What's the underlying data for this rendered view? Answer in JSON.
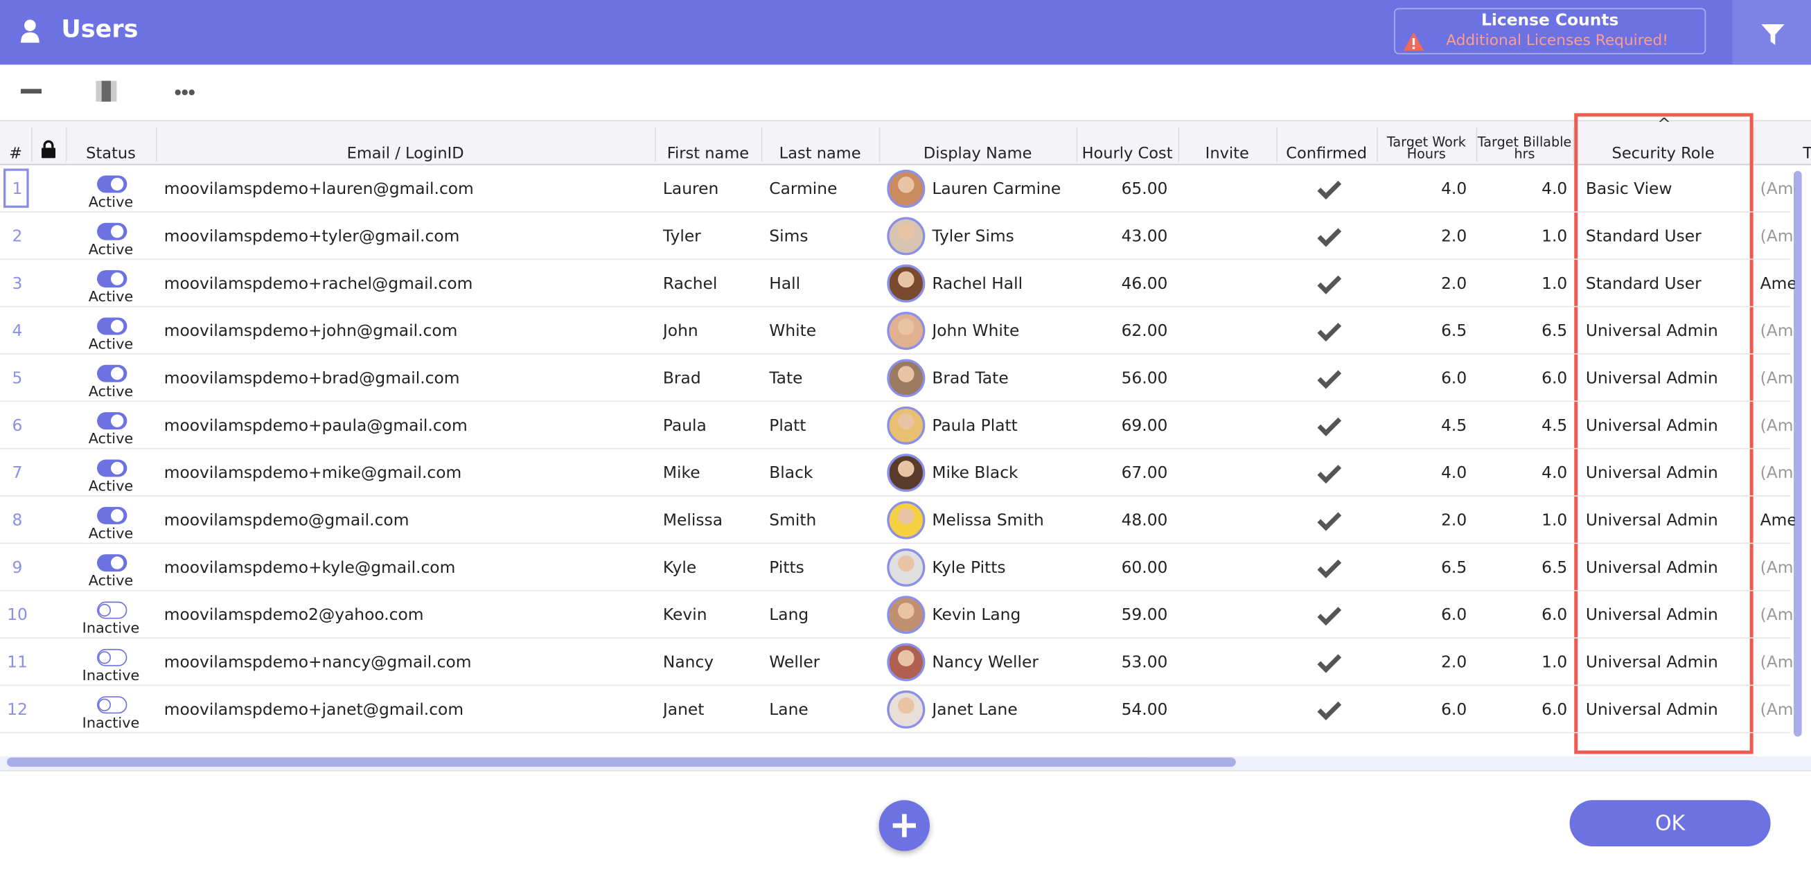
{
  "header": {
    "title": "Users",
    "license_title": "License Counts",
    "license_warning": "Additional Licenses Required!"
  },
  "table": {
    "columns": [
      "#",
      "Status",
      "Email / LoginID",
      "First name",
      "Last name",
      "Display Name",
      "Hourly Cost",
      "Invite",
      "Confirmed",
      "Target Work Hours",
      "Target Billable hrs",
      "Security Role",
      "T"
    ],
    "rows": [
      {
        "num": "1",
        "status": "Active",
        "email": "moovilamspdemo+lauren@gmail.com",
        "first": "Lauren",
        "last": "Carmine",
        "display": "Lauren Carmine",
        "cost": "65.00",
        "work": "4.0",
        "billable": "4.0",
        "role": "Basic View",
        "tz": "(Ame"
      },
      {
        "num": "2",
        "status": "Active",
        "email": "moovilamspdemo+tyler@gmail.com",
        "first": "Tyler",
        "last": "Sims",
        "display": "Tyler Sims",
        "cost": "43.00",
        "work": "2.0",
        "billable": "1.0",
        "role": "Standard User",
        "tz": "(Am"
      },
      {
        "num": "3",
        "status": "Active",
        "email": "moovilamspdemo+rachel@gmail.com",
        "first": "Rachel",
        "last": "Hall",
        "display": "Rachel Hall",
        "cost": "46.00",
        "work": "2.0",
        "billable": "1.0",
        "role": "Standard User",
        "tz": "Ame"
      },
      {
        "num": "4",
        "status": "Active",
        "email": "moovilamspdemo+john@gmail.com",
        "first": "John",
        "last": "White",
        "display": "John White",
        "cost": "62.00",
        "work": "6.5",
        "billable": "6.5",
        "role": "Universal Admin",
        "tz": "(Am"
      },
      {
        "num": "5",
        "status": "Active",
        "email": "moovilamspdemo+brad@gmail.com",
        "first": "Brad",
        "last": "Tate",
        "display": "Brad Tate",
        "cost": "56.00",
        "work": "6.0",
        "billable": "6.0",
        "role": "Universal Admin",
        "tz": "(Am"
      },
      {
        "num": "6",
        "status": "Active",
        "email": "moovilamspdemo+paula@gmail.com",
        "first": "Paula",
        "last": "Platt",
        "display": "Paula Platt",
        "cost": "69.00",
        "work": "4.5",
        "billable": "4.5",
        "role": "Universal Admin",
        "tz": "(Am"
      },
      {
        "num": "7",
        "status": "Active",
        "email": "moovilamspdemo+mike@gmail.com",
        "first": "Mike",
        "last": "Black",
        "display": "Mike Black",
        "cost": "67.00",
        "work": "4.0",
        "billable": "4.0",
        "role": "Universal Admin",
        "tz": "(Am"
      },
      {
        "num": "8",
        "status": "Active",
        "email": "moovilamspdemo@gmail.com",
        "first": "Melissa",
        "last": "Smith",
        "display": "Melissa Smith",
        "cost": "48.00",
        "work": "2.0",
        "billable": "1.0",
        "role": "Universal Admin",
        "tz": "Ame"
      },
      {
        "num": "9",
        "status": "Active",
        "email": "moovilamspdemo+kyle@gmail.com",
        "first": "Kyle",
        "last": "Pitts",
        "display": "Kyle Pitts",
        "cost": "60.00",
        "work": "6.5",
        "billable": "6.5",
        "role": "Universal Admin",
        "tz": "(Am"
      },
      {
        "num": "10",
        "status": "Inactive",
        "email": "moovilamspdemo2@yahoo.com",
        "first": "Kevin",
        "last": "Lang",
        "display": "Kevin Lang",
        "cost": "59.00",
        "work": "6.0",
        "billable": "6.0",
        "role": "Universal Admin",
        "tz": "(Am"
      },
      {
        "num": "11",
        "status": "Inactive",
        "email": "moovilamspdemo+nancy@gmail.com",
        "first": "Nancy",
        "last": "Weller",
        "display": "Nancy Weller",
        "cost": "53.00",
        "work": "2.0",
        "billable": "1.0",
        "role": "Universal Admin",
        "tz": "(Am"
      },
      {
        "num": "12",
        "status": "Inactive",
        "email": "moovilamspdemo+janet@gmail.com",
        "first": "Janet",
        "last": "Lane",
        "display": "Janet Lane",
        "cost": "54.00",
        "work": "6.0",
        "billable": "6.0",
        "role": "Universal Admin",
        "tz": "(Am"
      }
    ]
  },
  "footer": {
    "ok": "OK"
  }
}
